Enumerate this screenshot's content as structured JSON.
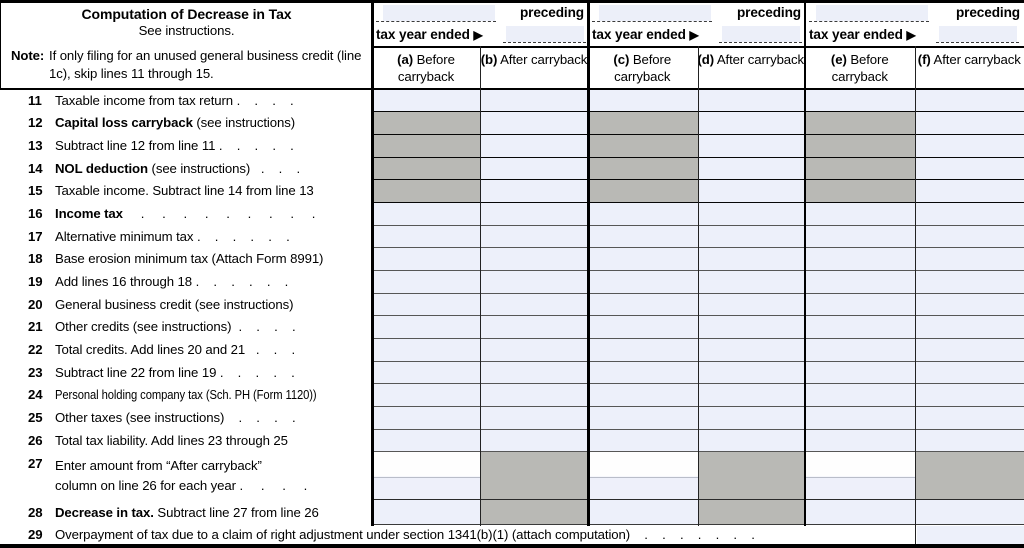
{
  "colors": {
    "fillable_field_bg": "#edf0fa",
    "shaded_cell_bg": "#b9b9b5",
    "line_color": "#000000"
  },
  "header": {
    "title": "Computation of Decrease in Tax",
    "subtitle": "See instructions.",
    "note_label": "Note:",
    "note_text": "If only filing for an unused general business credit (line 1c), skip lines 11 through 15.",
    "preceding_label": "preceding",
    "tax_year_label": "tax year ended ",
    "arrow": "▶",
    "groups": [
      {
        "col1_letter": "(a)",
        "col1_text": " Before carryback",
        "col2_letter": "(b)",
        "col2_text": " After carryback"
      },
      {
        "col1_letter": "(c)",
        "col1_text": " Before carryback",
        "col2_letter": "(d)",
        "col2_text": " After carryback"
      },
      {
        "col1_letter": "(e)",
        "col1_text": " Before carryback",
        "col2_letter": "(f)",
        "col2_text": " After carryback"
      }
    ]
  },
  "rows": [
    {
      "num": "11",
      "bold": "",
      "text": "Taxable income from tax return .    .    .    ."
    },
    {
      "num": "12",
      "bold": "Capital loss carryback",
      "text": " (see instructions)"
    },
    {
      "num": "13",
      "bold": "",
      "text": "Subtract line 12 from line 11 .    .    .    .    ."
    },
    {
      "num": "14",
      "bold": "NOL deduction",
      "text": " (see instructions)   .    .    ."
    },
    {
      "num": "15",
      "bold": "",
      "text": "Taxable income. Subtract line 14 from line 13"
    },
    {
      "num": "16",
      "bold": "Income tax",
      "text": "     .     .     .     .     .     .     .     .     ."
    },
    {
      "num": "17",
      "bold": "",
      "text": "Alternative minimum tax .    .    .    .    .    ."
    },
    {
      "num": "18",
      "bold": "",
      "text": "Base erosion minimum tax (Attach Form 8991)"
    },
    {
      "num": "19",
      "bold": "",
      "text": "Add lines 16 through 18 .    .    .    .    .    ."
    },
    {
      "num": "20",
      "bold": "",
      "text": "General business credit (see instructions)"
    },
    {
      "num": "21",
      "bold": "",
      "text": "Other credits (see instructions)  .    .    .    ."
    },
    {
      "num": "22",
      "bold": "",
      "text": "Total credits. Add lines 20 and 21   .    .    ."
    },
    {
      "num": "23",
      "bold": "",
      "text": "Subtract line 22 from line 19 .    .    .    .    ."
    },
    {
      "num": "24",
      "bold": "",
      "text": "Personal holding company tax (Sch. PH (Form 1120))"
    },
    {
      "num": "25",
      "bold": "",
      "text": "Other taxes (see instructions)    .    .    .    ."
    },
    {
      "num": "26",
      "bold": "",
      "text": "Total tax liability. Add lines 23 through 25"
    },
    {
      "num": "27",
      "bold": "",
      "text": "Enter amount from “After carryback”",
      "text2": "column on line 26 for each year .     .     .     ."
    },
    {
      "num": "28",
      "bold": "Decrease in tax.",
      "text": " Subtract line 27 from line 26"
    },
    {
      "num": "29",
      "bold": "",
      "text": "Overpayment of tax due to a claim of right adjustment under section 1341(b)(1) (attach computation)    .    .    .    .    .    .    ."
    }
  ]
}
